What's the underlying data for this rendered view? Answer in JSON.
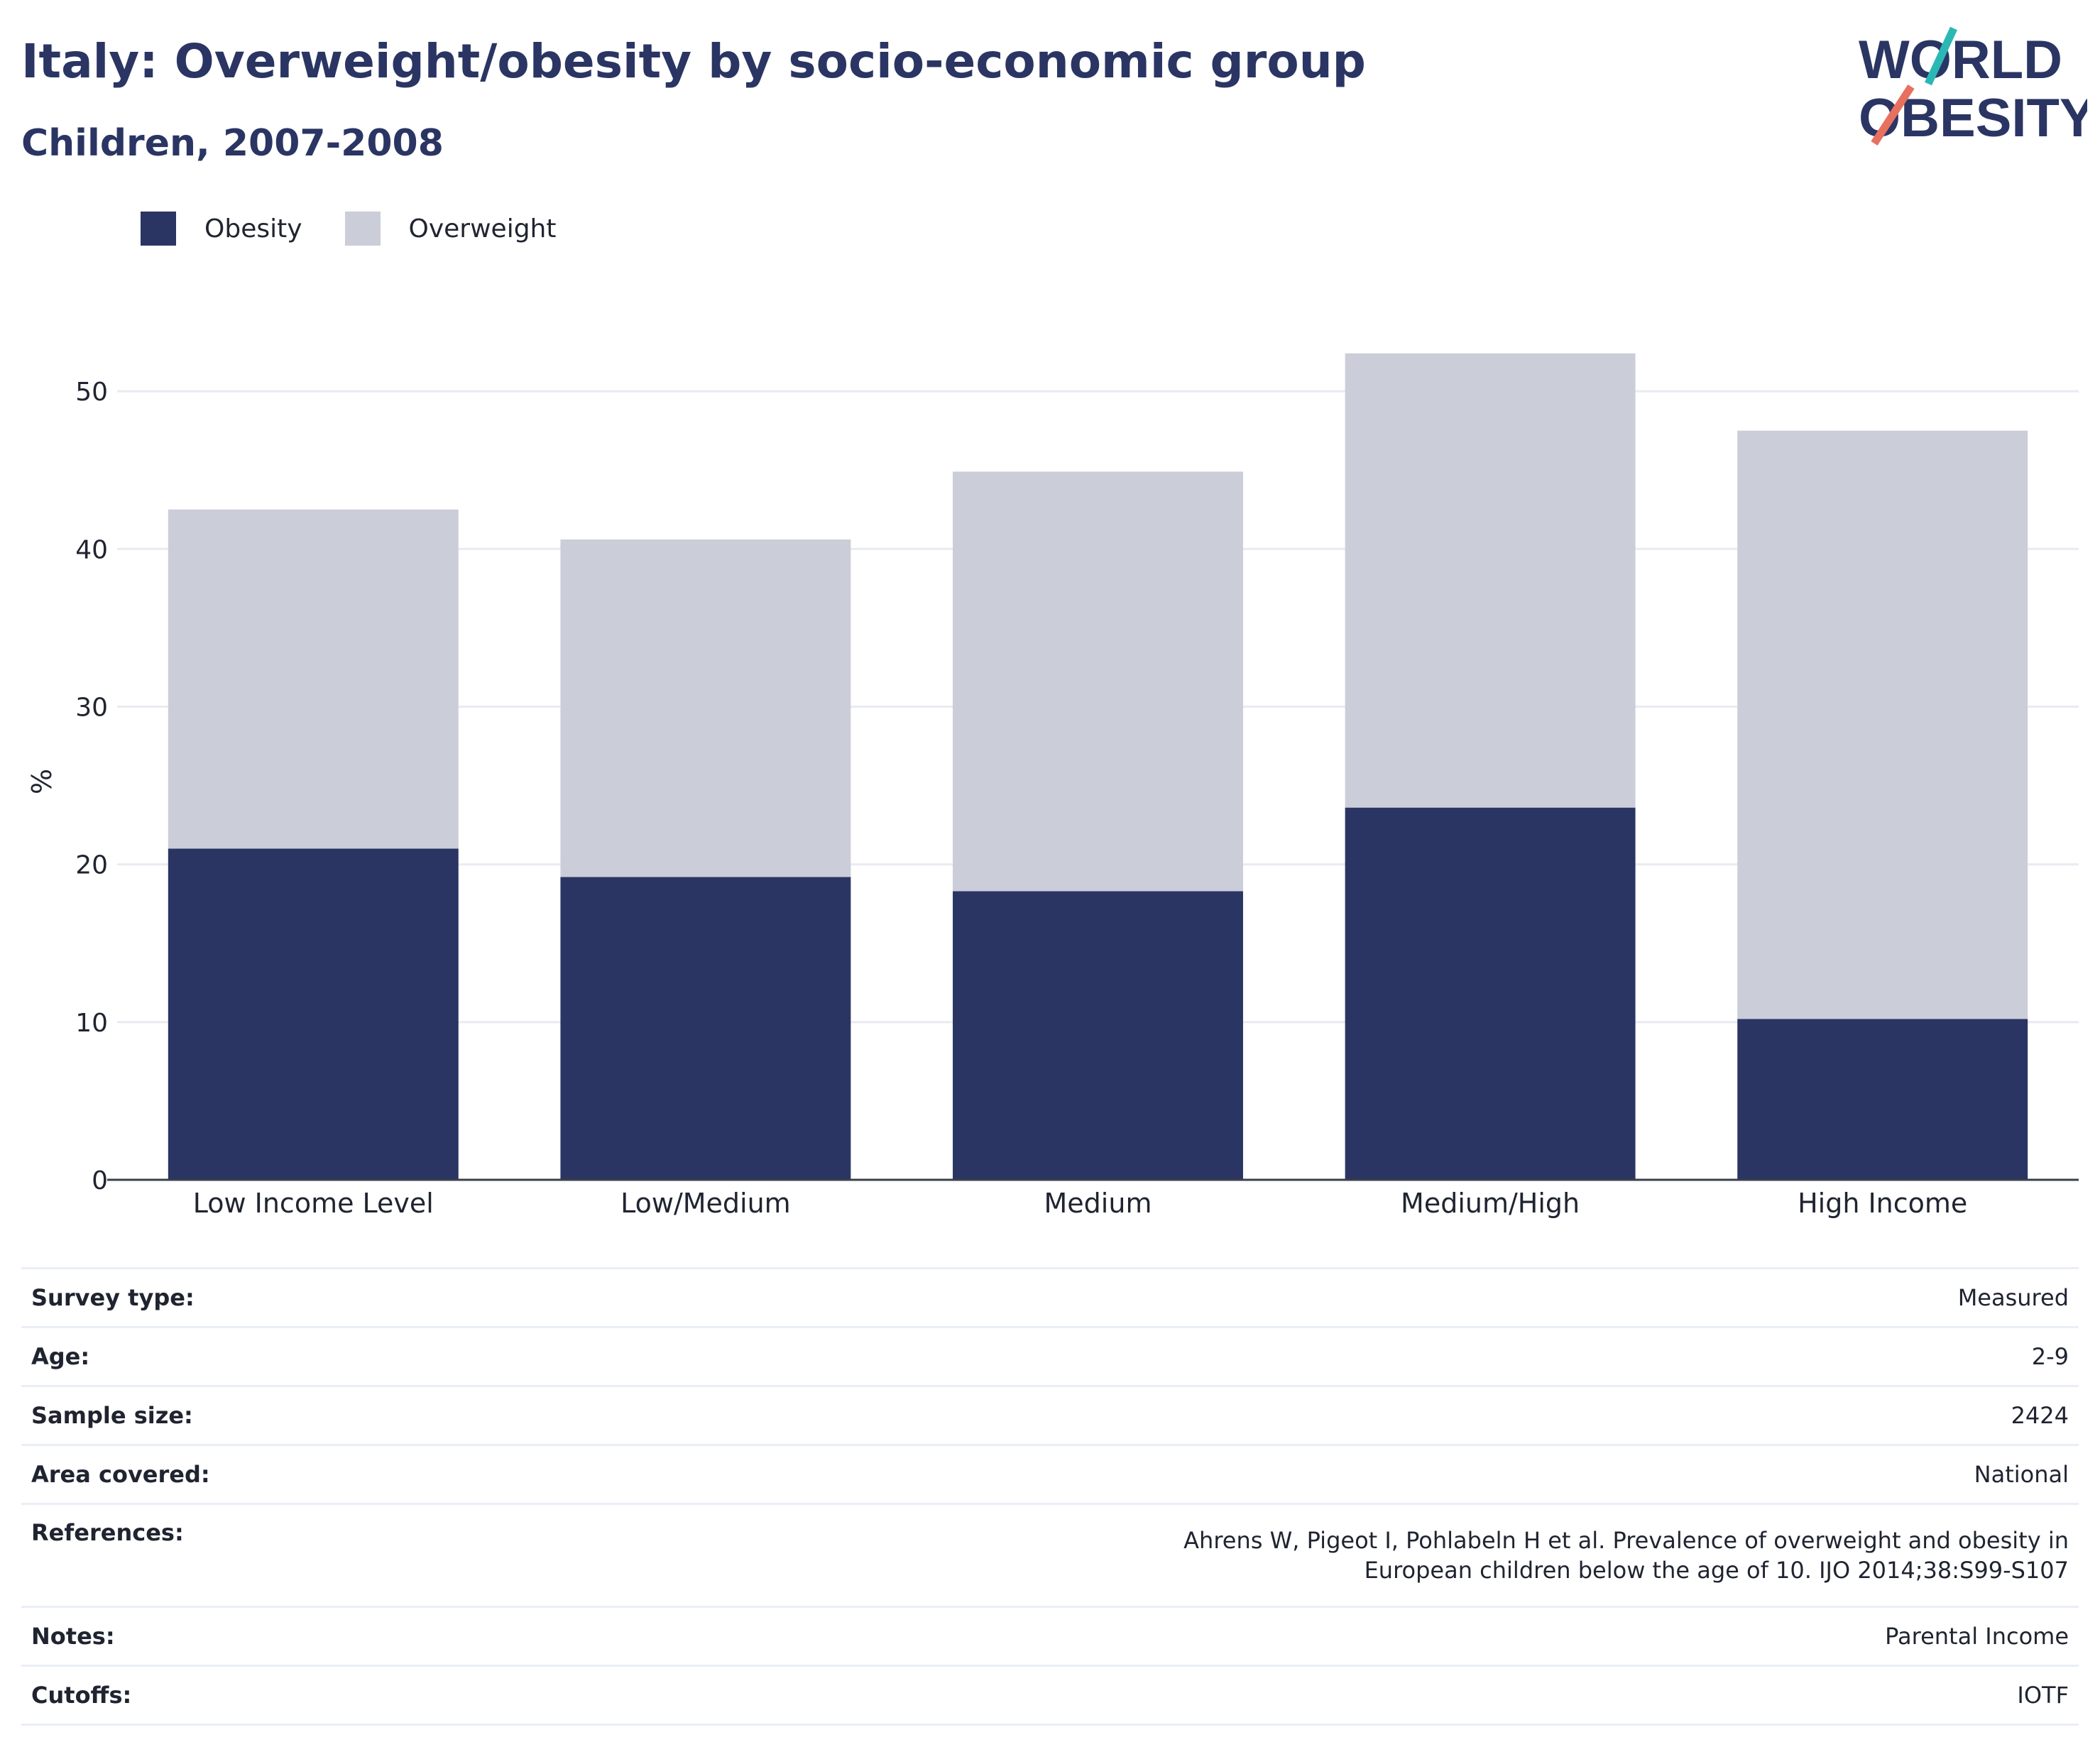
{
  "header": {
    "title": "Italy: Overweight/obesity by socio-economic group",
    "subtitle": "Children, 2007-2008"
  },
  "logo": {
    "line1": "WORLD",
    "line2": "OBESITY"
  },
  "legend": [
    {
      "label": "Obesity",
      "color": "#2a3563"
    },
    {
      "label": "Overweight",
      "color": "#cbcdd9"
    }
  ],
  "chart_data": {
    "type": "bar",
    "stacked": true,
    "categories": [
      "Low Income Level",
      "Low/Medium",
      "Medium",
      "Medium/High",
      "High Income"
    ],
    "series": [
      {
        "name": "Obesity",
        "color": "#2a3563",
        "values": [
          21.0,
          19.2,
          18.3,
          23.6,
          10.2
        ]
      },
      {
        "name": "Overweight",
        "color": "#cbcdd9",
        "values": [
          21.5,
          21.4,
          26.6,
          28.8,
          37.3
        ]
      }
    ],
    "ylabel": "%",
    "ylim": [
      0,
      55
    ],
    "yticks": [
      0,
      10,
      20,
      30,
      40,
      50
    ],
    "grid": true,
    "legend_position": "top-left"
  },
  "meta": [
    {
      "key": "Survey type:",
      "value": "Measured"
    },
    {
      "key": "Age:",
      "value": "2-9"
    },
    {
      "key": "Sample size:",
      "value": "2424"
    },
    {
      "key": "Area covered:",
      "value": "National"
    },
    {
      "key": "References:",
      "value": "Ahrens W, Pigeot I, Pohlabeln H et al. Prevalence of overweight and obesity in European children below the age of 10. IJO 2014;38:S99-S107"
    },
    {
      "key": "Notes:",
      "value": "Parental Income"
    },
    {
      "key": "Cutoffs:",
      "value": "IOTF"
    }
  ]
}
